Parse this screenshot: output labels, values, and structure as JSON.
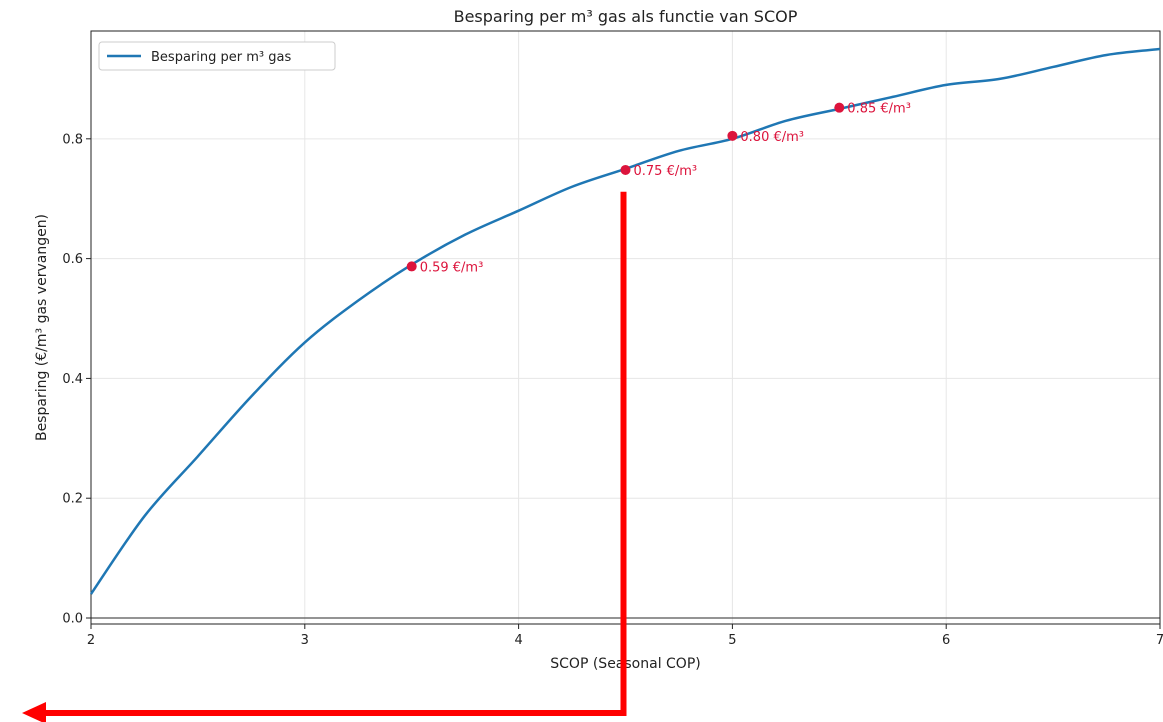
{
  "chart_data": {
    "type": "line",
    "title": "Besparing per m³ gas als functie van SCOP",
    "xlabel": "SCOP (Seasonal COP)",
    "ylabel": "Besparing (€/m³ gas vervangen)",
    "xlim": [
      2,
      7
    ],
    "ylim": [
      -0.01,
      0.98
    ],
    "xticks": [
      2,
      3,
      4,
      5,
      6,
      7
    ],
    "yticks": [
      0.0,
      0.2,
      0.4,
      0.6,
      0.8
    ],
    "yticks_labels": [
      "0.0",
      "0.2",
      "0.4",
      "0.6",
      "0.8"
    ],
    "grid": true,
    "legend": {
      "position": "upper-left",
      "entries": [
        "Besparing per m³ gas"
      ]
    },
    "series": [
      {
        "name": "Besparing per m³ gas",
        "color": "#1f77b4",
        "x": [
          2.0,
          2.25,
          2.5,
          2.75,
          3.0,
          3.25,
          3.5,
          3.75,
          4.0,
          4.25,
          4.5,
          4.75,
          5.0,
          5.25,
          5.5,
          5.75,
          6.0,
          6.25,
          6.5,
          6.75,
          7.0
        ],
        "y": [
          0.04,
          0.17,
          0.27,
          0.37,
          0.46,
          0.53,
          0.59,
          0.64,
          0.68,
          0.72,
          0.75,
          0.78,
          0.8,
          0.83,
          0.85,
          0.87,
          0.89,
          0.9,
          0.92,
          0.94,
          0.95
        ]
      }
    ],
    "highlight_points": [
      {
        "x": 3.5,
        "y": 0.587,
        "label": "0.59 €/m³"
      },
      {
        "x": 4.5,
        "y": 0.748,
        "label": "0.75 €/m³"
      },
      {
        "x": 5.0,
        "y": 0.805,
        "label": "0.80 €/m³"
      },
      {
        "x": 5.5,
        "y": 0.852,
        "label": "0.85 €/m³"
      }
    ],
    "highlight_color": "#dc143c",
    "reference_line_y": 0.0,
    "overlay_arrow": {
      "color": "#ff0000",
      "from_x": 4.5,
      "from_y": 0.72,
      "direction": "down-then-left"
    }
  }
}
